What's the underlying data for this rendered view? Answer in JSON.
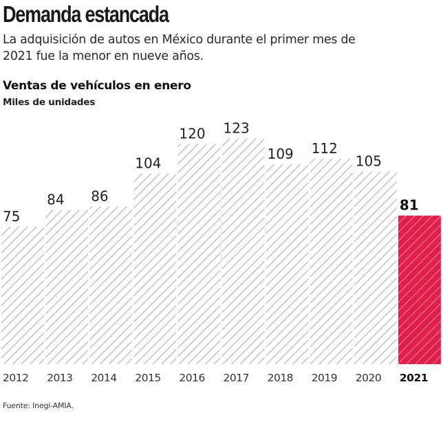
{
  "header": {
    "title": "Demanda estancada",
    "subtitle": "La adquisición de autos en México durante el primer mes de 2021 fue la menor en nueve años."
  },
  "chart_title": "Ventas de vehículos en enero",
  "chart_units": "Miles de unidades",
  "source": "Fuente: Inegi-AMIA.",
  "colors": {
    "bar_hatch": "#c8c8c8",
    "highlight": "#e0204a",
    "highlight_hatch": "#f59ab0",
    "text": "#222222"
  },
  "chart_data": {
    "type": "bar",
    "title": "Ventas de vehículos en enero",
    "subtitle": "Miles de unidades",
    "xlabel": "",
    "ylabel": "Miles de unidades",
    "categories": [
      "2012",
      "2013",
      "2014",
      "2015",
      "2016",
      "2017",
      "2018",
      "2019",
      "2020",
      "2021"
    ],
    "values": [
      75,
      84,
      86,
      104,
      120,
      123,
      109,
      112,
      105,
      81
    ],
    "highlight_index": 9,
    "ylim": [
      0,
      123
    ],
    "grid": false,
    "legend": "none",
    "bar_style": "diagonal-hatched",
    "data_labels": true
  }
}
